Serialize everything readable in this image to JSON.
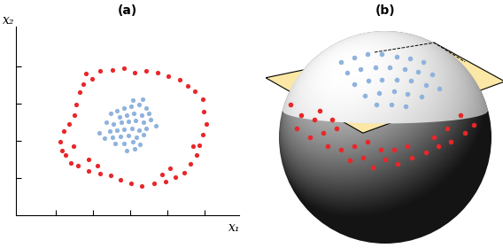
{
  "chart_data": [
    {
      "type": "scatter",
      "title": "(a)",
      "xlabel": "x₁",
      "ylabel": "x₂",
      "xlim": [
        0,
        252
      ],
      "ylim": [
        0,
        213
      ],
      "xticks": [
        45,
        87,
        129,
        171,
        213
      ],
      "yticks": [
        42,
        84,
        126,
        168
      ],
      "tick_labels": false,
      "grid": false,
      "series": [
        {
          "color": "#e8272a",
          "marker": "circle",
          "x": [
            79,
            95,
            109,
            122,
            134,
            147,
            160,
            172,
            185,
            194,
            202,
            211,
            212,
            215,
            211,
            207,
            204,
            197,
            190,
            180,
            169,
            156,
            142,
            130,
            118,
            107,
            95,
            82,
            70,
            62,
            56,
            52,
            50,
            54,
            60,
            66,
            68,
            72,
            76,
            86,
            174,
            165,
            82,
            92,
            200,
            65
          ],
          "y": [
            160,
            163,
            164,
            166,
            161,
            163,
            161,
            157,
            153,
            146,
            140,
            131,
            117,
            103,
            91,
            79,
            68,
            58,
            48,
            43,
            38,
            36,
            33,
            36,
            40,
            45,
            47,
            50,
            56,
            59,
            68,
            73,
            83,
            95,
            103,
            113,
            125,
            139,
            148,
            154,
            53,
            46,
            63,
            56,
            78,
            78
          ]
        },
        {
          "color": "#8fb3de",
          "marker": "circle",
          "x": [
            107,
            114,
            122,
            130,
            139,
            147,
            117,
            125,
            133,
            142,
            150,
            102,
            110,
            119,
            127,
            135,
            144,
            152,
            106,
            114,
            122,
            131,
            139,
            147,
            100,
            109,
            118,
            127,
            136,
            144,
            112,
            122,
            132,
            140,
            125,
            134,
            132,
            143,
            158,
            94
          ],
          "y": [
            115,
            118,
            121,
            123,
            125,
            121,
            111,
            113,
            115,
            113,
            115,
            105,
            103,
            105,
            106,
            107,
            105,
            108,
            95,
            96,
            97,
            98,
            96,
            98,
            87,
            88,
            89,
            90,
            88,
            91,
            81,
            81,
            83,
            80,
            73,
            75,
            130,
            131,
            101,
            93
          ]
        }
      ]
    },
    {
      "type": "sphere",
      "title": "(b)",
      "tick_labels": false,
      "series": [
        {
          "color": "#8fb3de",
          "marker": "circle",
          "x": [
            -0.42,
            -0.29,
            -0.17,
            -0.03,
            0.11,
            0.23,
            0.36,
            -0.36,
            -0.23,
            -0.09,
            0.04,
            0.18,
            0.31,
            0.44,
            -0.29,
            -0.16,
            -0.03,
            0.11,
            0.24,
            0.38,
            0.51,
            -0.19,
            -0.06,
            0.08,
            0.21,
            0.34,
            -0.08,
            0.06,
            0.19
          ],
          "y": [
            0.71,
            0.75,
            0.78,
            0.78,
            0.76,
            0.74,
            0.71,
            0.61,
            0.64,
            0.66,
            0.66,
            0.64,
            0.62,
            0.59,
            0.5,
            0.53,
            0.54,
            0.54,
            0.53,
            0.49,
            0.46,
            0.39,
            0.42,
            0.43,
            0.41,
            0.38,
            0.31,
            0.31,
            0.29
          ]
        },
        {
          "color": "#e8272a",
          "marker": "circle",
          "x": [
            -0.89,
            -0.79,
            -0.67,
            -0.83,
            -0.71,
            -0.58,
            -0.46,
            -0.54,
            -0.42,
            -0.29,
            -0.33,
            -0.21,
            -0.12,
            0.0,
            0.12,
            0.25,
            0.38,
            0.5,
            0.62,
            0.75,
            0.83,
            0.71,
            0.58,
            0.46,
            0.21,
            0.08,
            -0.04,
            -0.17,
            -0.5,
            -0.62
          ],
          "y": [
            0.31,
            0.21,
            0.17,
            0.08,
            0.0,
            0.04,
            0.08,
            -0.08,
            -0.12,
            -0.08,
            -0.22,
            -0.19,
            -0.28,
            -0.21,
            -0.25,
            -0.19,
            -0.14,
            -0.08,
            -0.04,
            0.04,
            0.12,
            0.21,
            0.08,
            0.0,
            -0.08,
            -0.12,
            -0.12,
            -0.04,
            0.17,
            0.25
          ]
        }
      ]
    }
  ]
}
